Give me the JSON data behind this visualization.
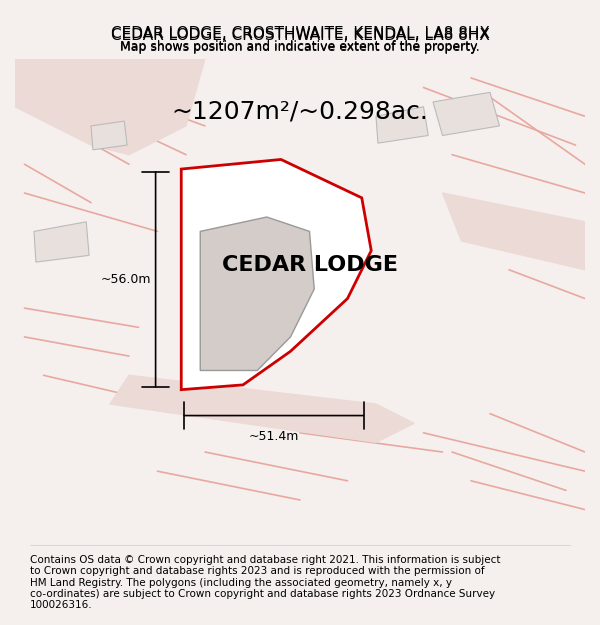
{
  "title": "CEDAR LODGE, CROSTHWAITE, KENDAL, LA8 8HX",
  "subtitle": "Map shows position and indicative extent of the property.",
  "area_label": "~1207m²/~0.298ac.",
  "property_label": "CEDAR LODGE",
  "dim_width": "~51.4m",
  "dim_height": "~56.0m",
  "footer": "Contains OS data © Crown copyright and database right 2021. This information is subject to Crown copyright and database rights 2023 and is reproduced with the permission of HM Land Registry. The polygons (including the associated geometry, namely x, y co-ordinates) are subject to Crown copyright and database rights 2023 Ordnance Survey 100026316.",
  "bg_color": "#f5f0ee",
  "map_bg": "#f5f0ee",
  "road_color": "#e8d5d0",
  "property_fill": "#f5f0ee",
  "property_edge": "#cc0000",
  "building_fill": "#d4ccc8",
  "building_edge": "#999999",
  "neighbor_fill": "#e8e0dc",
  "neighbor_edge": "#bbbbbb",
  "road_line_color": "#e8b8b0",
  "dim_line_color": "#000000",
  "title_fontsize": 11,
  "subtitle_fontsize": 9,
  "area_fontsize": 18,
  "property_label_fontsize": 16,
  "footer_fontsize": 7.5
}
